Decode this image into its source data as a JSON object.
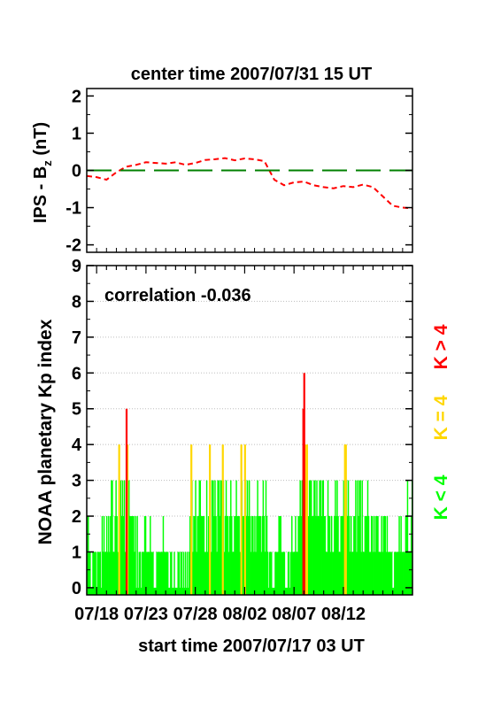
{
  "top_title": "center time 2007/07/31 15 UT",
  "bottom_label": "start time 2007/07/17 03 UT",
  "colors": {
    "bz_line": "#ff0000",
    "zero_line": "#008000",
    "kp_low": "#00ff00",
    "kp_mid": "#ffd700",
    "kp_high": "#ff0000",
    "grid": "#bdbdbd",
    "frame": "#000000"
  },
  "chart_data": [
    {
      "type": "line",
      "title": "center time 2007/07/31 15 UT",
      "ylabel_main": "IPS - B",
      "ylabel_sub": "z",
      "ylabel_unit": " (nT)",
      "ylim": [
        -2.2,
        2.2
      ],
      "yticks": [
        "2",
        "1",
        "0",
        "-1",
        "-2"
      ],
      "xlim": [
        0,
        33
      ],
      "grid": false,
      "series": [
        {
          "style": "dashed-red",
          "x": [
            0,
            1,
            2,
            3,
            4,
            5,
            6,
            7,
            8,
            9,
            10,
            11,
            12,
            13,
            14,
            15,
            16,
            17,
            18,
            19,
            20,
            21,
            22,
            23,
            24,
            25,
            26,
            27,
            28,
            29,
            30,
            31,
            32,
            33
          ],
          "y": [
            -0.15,
            -0.18,
            -0.25,
            -0.05,
            0.1,
            0.15,
            0.22,
            0.2,
            0.18,
            0.22,
            0.15,
            0.2,
            0.28,
            0.3,
            0.33,
            0.27,
            0.32,
            0.3,
            0.25,
            -0.25,
            -0.4,
            -0.32,
            -0.3,
            -0.4,
            -0.45,
            -0.48,
            -0.42,
            -0.45,
            -0.38,
            -0.45,
            -0.7,
            -0.95,
            -1.0,
            -1.02
          ]
        },
        {
          "style": "long-dash-green",
          "x": [
            0,
            33
          ],
          "y": [
            0,
            0
          ]
        }
      ]
    },
    {
      "type": "bar",
      "ylabel": "NOAA planetary Kp index",
      "annotation": "correlation -0.036",
      "xlabel": "start time 2007/07/17 03 UT",
      "xlim": [
        0,
        33
      ],
      "ylim": [
        -0.2,
        9
      ],
      "yticks": [
        "0",
        "1",
        "2",
        "3",
        "4",
        "5",
        "6",
        "7",
        "8",
        "9"
      ],
      "xticks": [
        {
          "label": "07/18",
          "x": 1
        },
        {
          "label": "07/23",
          "x": 6
        },
        {
          "label": "07/28",
          "x": 11
        },
        {
          "label": "08/02",
          "x": 16
        },
        {
          "label": "08/07",
          "x": 21
        },
        {
          "label": "08/12",
          "x": 26
        }
      ],
      "grid": true,
      "legend": [
        {
          "text": "K < 4",
          "color": "#00ff00"
        },
        {
          "text": "K = 4",
          "color": "#ffd700"
        },
        {
          "text": "K > 4",
          "color": "#ff0000"
        }
      ],
      "series": [
        {
          "name": "Kp",
          "values": [
            2,
            2,
            1,
            1,
            0,
            0,
            1,
            1,
            1,
            1,
            0,
            1,
            1,
            1,
            1,
            0,
            2,
            1,
            2,
            1,
            1,
            2,
            1,
            2,
            1,
            2,
            3,
            3,
            1,
            1,
            2,
            3,
            2,
            1,
            4,
            2,
            3,
            2,
            3,
            2,
            3,
            1,
            5,
            4,
            2,
            3,
            2,
            2,
            2,
            2,
            2,
            1,
            2,
            0,
            2,
            0,
            1,
            1,
            0,
            1,
            1,
            1,
            2,
            2,
            1,
            1,
            1,
            1,
            2,
            1,
            1,
            1,
            0,
            0,
            0,
            1,
            1,
            1,
            1,
            1,
            1,
            1,
            2,
            1,
            1,
            1,
            1,
            1,
            0,
            0,
            1,
            1,
            0,
            0,
            1,
            0,
            0,
            0,
            1,
            1,
            0,
            1,
            1,
            0,
            1,
            0,
            1,
            0,
            1,
            0,
            1,
            2,
            4,
            3,
            1,
            2,
            2,
            3,
            1,
            2,
            2,
            3,
            3,
            2,
            2,
            2,
            2,
            1,
            1,
            3,
            1,
            2,
            4,
            3,
            1,
            3,
            3,
            2,
            3,
            2,
            1,
            3,
            3,
            2,
            3,
            3,
            4,
            3,
            1,
            2,
            3,
            2,
            2,
            1,
            2,
            3,
            2,
            1,
            1,
            2,
            2,
            3,
            2,
            2,
            2,
            1,
            4,
            3,
            2,
            2,
            4,
            3,
            2,
            3,
            2,
            3,
            2,
            1,
            2,
            2,
            1,
            2,
            1,
            2,
            3,
            2,
            2,
            2,
            1,
            2,
            3,
            2,
            1,
            3,
            2,
            1,
            0,
            1,
            1,
            1,
            0,
            0,
            0,
            1,
            1,
            1,
            1,
            2,
            2,
            2,
            1,
            1,
            1,
            1,
            0,
            0,
            0,
            1,
            1,
            0,
            1,
            2,
            1,
            1,
            1,
            2,
            1,
            1,
            2,
            2,
            3,
            2,
            3,
            5,
            6,
            4,
            3,
            4,
            2,
            2,
            3,
            3,
            3,
            2,
            2,
            3,
            3,
            2,
            3,
            2,
            2,
            3,
            3,
            2,
            3,
            3,
            2,
            2,
            1,
            1,
            3,
            2,
            2,
            1,
            2,
            1,
            1,
            2,
            3,
            2,
            3,
            2,
            1,
            1,
            2,
            2,
            2,
            3,
            4,
            4,
            3,
            2,
            3,
            2,
            1,
            2,
            1,
            1,
            2,
            2,
            3,
            1,
            3,
            2,
            3,
            3,
            1,
            3,
            1,
            1,
            2,
            2,
            2,
            3,
            2,
            1,
            1,
            2,
            2,
            1,
            2,
            1,
            2,
            2,
            2,
            1,
            1,
            1,
            2,
            1,
            2,
            2,
            2,
            1,
            2,
            1,
            1,
            1,
            1,
            1,
            0,
            0,
            1,
            1,
            1,
            1,
            1,
            2,
            1,
            2,
            1,
            1,
            1,
            1,
            2,
            2,
            3,
            1,
            1,
            1,
            2,
            3
          ]
        }
      ]
    }
  ]
}
